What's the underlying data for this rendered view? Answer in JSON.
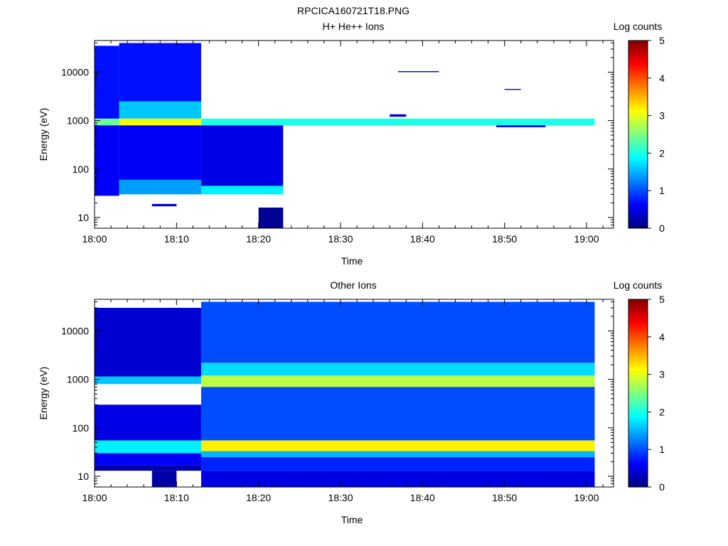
{
  "figure_title": "RPCICA160721T18.PNG",
  "colors": {
    "colormap": [
      "#00007f",
      "#0000ff",
      "#0080ff",
      "#00ffff",
      "#80ff80",
      "#ffff00",
      "#ff8000",
      "#ff0000",
      "#7f0000"
    ]
  },
  "chart_data": [
    {
      "type": "heatmap",
      "title": "H+ He++ Ions",
      "xlabel": "Time",
      "ylabel": "Energy (eV)",
      "x_ticks": [
        "18:00",
        "18:10",
        "18:20",
        "18:30",
        "18:40",
        "18:50",
        "19:00"
      ],
      "y_ticks": [
        "10",
        "100",
        "1000",
        "10000"
      ],
      "y_scale": "log",
      "ylim": [
        6,
        45000
      ],
      "colorbar": {
        "label": "Log counts",
        "ticks": [
          "0",
          "1",
          "2",
          "3",
          "4",
          "5"
        ],
        "range": [
          0,
          5
        ]
      },
      "bands": [
        {
          "time": [
            "18:00",
            "18:03"
          ],
          "energy": [
            6,
            28
          ],
          "log_counts": null
        },
        {
          "time": [
            "18:00",
            "18:03"
          ],
          "energy": [
            28,
            800
          ],
          "log_counts": 0.6
        },
        {
          "time": [
            "18:00",
            "18:03"
          ],
          "energy": [
            800,
            1100
          ],
          "log_counts": 2.4
        },
        {
          "time": [
            "18:00",
            "18:03"
          ],
          "energy": [
            1100,
            35000
          ],
          "log_counts": 0.7
        },
        {
          "time": [
            "18:03",
            "18:13"
          ],
          "energy": [
            30,
            60
          ],
          "log_counts": 1.4
        },
        {
          "time": [
            "18:03",
            "18:13"
          ],
          "energy": [
            60,
            800
          ],
          "log_counts": 0.6
        },
        {
          "time": [
            "18:03",
            "18:13"
          ],
          "energy": [
            800,
            1100
          ],
          "log_counts": 3.1
        },
        {
          "time": [
            "18:03",
            "18:13"
          ],
          "energy": [
            1100,
            2500
          ],
          "log_counts": 1.6
        },
        {
          "time": [
            "18:03",
            "18:13"
          ],
          "energy": [
            2500,
            40000
          ],
          "log_counts": 0.7
        },
        {
          "time": [
            "18:07",
            "18:10"
          ],
          "energy": [
            17,
            19
          ],
          "log_counts": 0.4
        },
        {
          "time": [
            "18:13",
            "18:23"
          ],
          "energy": [
            30,
            45
          ],
          "log_counts": 1.8
        },
        {
          "time": [
            "18:13",
            "18:23"
          ],
          "energy": [
            45,
            800
          ],
          "log_counts": 0.5
        },
        {
          "time": [
            "18:13",
            "19:01"
          ],
          "energy": [
            800,
            1100
          ],
          "log_counts": 2.0
        },
        {
          "time": [
            "18:20",
            "18:23"
          ],
          "energy": [
            6,
            16
          ],
          "log_counts": 0.1
        },
        {
          "time": [
            "18:36",
            "18:38"
          ],
          "energy": [
            1200,
            1350
          ],
          "log_counts": 0.5
        },
        {
          "time": [
            "18:37",
            "18:42"
          ],
          "energy": [
            10000,
            10500
          ],
          "log_counts": 0.4
        },
        {
          "time": [
            "18:49",
            "18:55"
          ],
          "energy": [
            730,
            800
          ],
          "log_counts": 0.6
        },
        {
          "time": [
            "18:50",
            "18:52"
          ],
          "energy": [
            4300,
            4500
          ],
          "log_counts": 0.4
        }
      ]
    },
    {
      "type": "heatmap",
      "title": "Other Ions",
      "xlabel": "Time",
      "ylabel": "Energy (eV)",
      "x_ticks": [
        "18:00",
        "18:10",
        "18:20",
        "18:30",
        "18:40",
        "18:50",
        "19:00"
      ],
      "y_ticks": [
        "10",
        "100",
        "1000",
        "10000"
      ],
      "y_scale": "log",
      "ylim": [
        6,
        45000
      ],
      "colorbar": {
        "label": "Log counts",
        "ticks": [
          "0",
          "1",
          "2",
          "3",
          "4",
          "5"
        ],
        "range": [
          0,
          5
        ]
      },
      "bands": [
        {
          "time": [
            "18:00",
            "18:13"
          ],
          "energy": [
            13,
            17
          ],
          "log_counts": 0.2
        },
        {
          "time": [
            "18:00",
            "18:13"
          ],
          "energy": [
            17,
            30
          ],
          "log_counts": 0.6
        },
        {
          "time": [
            "18:00",
            "18:13"
          ],
          "energy": [
            30,
            55
          ],
          "log_counts": 1.8
        },
        {
          "time": [
            "18:00",
            "18:13"
          ],
          "energy": [
            55,
            300
          ],
          "log_counts": 0.5
        },
        {
          "time": [
            "18:00",
            "18:13"
          ],
          "energy": [
            800,
            1150
          ],
          "log_counts": 1.6
        },
        {
          "time": [
            "18:00",
            "18:13"
          ],
          "energy": [
            1150,
            30000
          ],
          "log_counts": 0.4
        },
        {
          "time": [
            "18:07",
            "18:10"
          ],
          "energy": [
            6,
            13
          ],
          "log_counts": 0.2
        },
        {
          "time": [
            "18:13",
            "19:01"
          ],
          "energy": [
            6,
            13
          ],
          "log_counts": 0.5
        },
        {
          "time": [
            "18:13",
            "19:01"
          ],
          "energy": [
            13,
            25
          ],
          "log_counts": 0.8
        },
        {
          "time": [
            "18:13",
            "19:01"
          ],
          "energy": [
            25,
            33
          ],
          "log_counts": 1.5
        },
        {
          "time": [
            "18:13",
            "19:01"
          ],
          "energy": [
            33,
            55
          ],
          "log_counts": 3.2
        },
        {
          "time": [
            "18:13",
            "19:01"
          ],
          "energy": [
            55,
            700
          ],
          "log_counts": 1.0
        },
        {
          "time": [
            "18:13",
            "19:01"
          ],
          "energy": [
            700,
            1200
          ],
          "log_counts": 2.8
        },
        {
          "time": [
            "18:13",
            "19:01"
          ],
          "energy": [
            1200,
            2200
          ],
          "log_counts": 1.7
        },
        {
          "time": [
            "18:13",
            "19:01"
          ],
          "energy": [
            2200,
            40000
          ],
          "log_counts": 1.0
        }
      ]
    }
  ]
}
